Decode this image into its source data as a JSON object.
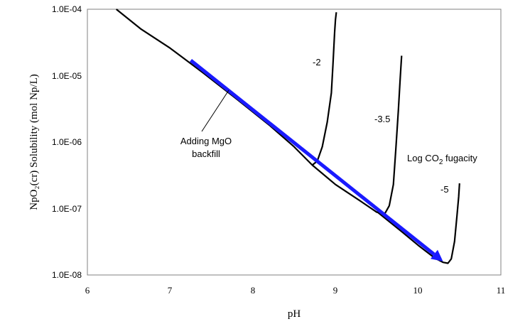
{
  "chart_data": {
    "type": "line",
    "xlabel": "pH",
    "ylabel": "NpO₂(cr) Solubility (mol Np/L)",
    "xlim": [
      6,
      11
    ],
    "ylim": [
      1e-08,
      0.0001
    ],
    "y_scale": "log",
    "grid": false,
    "x_ticks": [
      "6",
      "7",
      "8",
      "9",
      "10",
      "11"
    ],
    "y_ticks": [
      "1.0E-08",
      "1.0E-07",
      "1.0E-06",
      "1.0E-05",
      "1.0E-04"
    ],
    "series": [
      {
        "name": "-2",
        "x": [
          6.35,
          6.65,
          7.0,
          7.4,
          7.8,
          8.2,
          8.5,
          8.72,
          8.78,
          8.84,
          8.9,
          8.95,
          8.97,
          8.99,
          9.0,
          9.01
        ],
        "y": [
          0.0001,
          5e-05,
          2.6e-05,
          1.1e-05,
          4.5e-06,
          1.8e-06,
          8.5e-07,
          4.5e-07,
          5.2e-07,
          8.5e-07,
          2e-06,
          5.5e-06,
          1.5e-05,
          4.5e-05,
          7e-05,
          9e-05
        ]
      },
      {
        "name": "-3.5",
        "x": [
          8.72,
          9.0,
          9.3,
          9.5,
          9.6,
          9.65,
          9.7,
          9.73,
          9.76,
          9.78,
          9.79,
          9.8
        ],
        "y": [
          4.5e-07,
          2.3e-07,
          1.3e-07,
          8.8e-08,
          8.5e-08,
          1.1e-07,
          2.3e-07,
          8e-07,
          3e-06,
          8e-06,
          1.3e-05,
          2e-05
        ]
      },
      {
        "name": "-5",
        "x": [
          9.5,
          9.8,
          10.0,
          10.2,
          10.3,
          10.36,
          10.4,
          10.44,
          10.47,
          10.49,
          10.5
        ],
        "y": [
          9e-08,
          4.5e-08,
          2.8e-08,
          1.8e-08,
          1.55e-08,
          1.5e-08,
          1.75e-08,
          3.2e-08,
          8e-08,
          1.5e-07,
          2.4e-07
        ]
      }
    ],
    "arrow": {
      "color": "#1a1aff",
      "from": [
        7.25,
        1.7e-05
      ],
      "to": [
        10.3,
        1.6e-08
      ]
    },
    "annotations": {
      "series_minus2": "-2",
      "series_minus3_5": "-3.5",
      "log_co2_prefix": "Log CO",
      "log_co2_sub": "2",
      "log_co2_suffix": " fugacity",
      "series_minus5": "-5",
      "mgo_line1": "Adding MgO",
      "mgo_line2": "backfill"
    }
  }
}
